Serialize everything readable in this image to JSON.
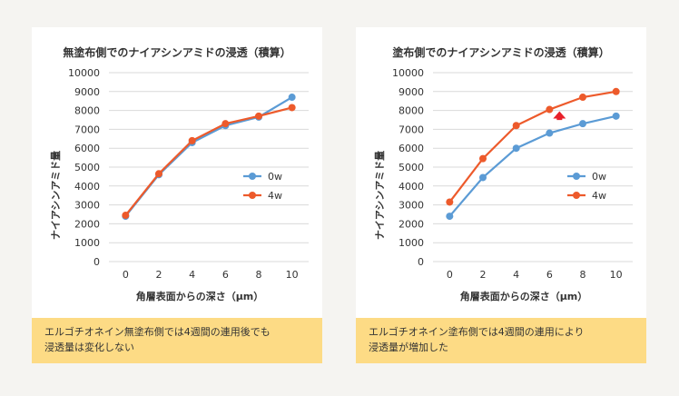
{
  "chart_data": [
    {
      "type": "line",
      "title": "無塗布側でのナイアシンアミドの浸透（積算）",
      "xlabel": "角層表面からの深さ（μm）",
      "ylabel": "ナイアシンアミド量",
      "x": [
        0,
        2,
        4,
        6,
        8,
        10
      ],
      "x_ticks": [
        "0",
        "2",
        "4",
        "6",
        "8",
        "10"
      ],
      "y_ticks": [
        "0",
        "1000",
        "2000",
        "3000",
        "4000",
        "5000",
        "6000",
        "7000",
        "8000",
        "9000",
        "10000"
      ],
      "ylim": [
        0,
        10000
      ],
      "grid": "horizontal",
      "legend_position": "right",
      "series": [
        {
          "name": "0w",
          "color": "#5b9bd5",
          "values": [
            2400,
            4600,
            6300,
            7200,
            7650,
            8700
          ]
        },
        {
          "name": "4w",
          "color": "#ed5a2b",
          "values": [
            2450,
            4650,
            6400,
            7300,
            7700,
            8150
          ]
        }
      ],
      "caption": "エルゴチオネイン無塗布側では4週間の連用後でも\n浸透量は変化しない"
    },
    {
      "type": "line",
      "title": "塗布側でのナイアシンアミドの浸透（積算）",
      "xlabel": "角層表面からの深さ（μm）",
      "ylabel": "ナイアシンアミド量",
      "x": [
        0,
        2,
        4,
        6,
        8,
        10
      ],
      "x_ticks": [
        "0",
        "2",
        "4",
        "6",
        "8",
        "10"
      ],
      "y_ticks": [
        "0",
        "1000",
        "2000",
        "3000",
        "4000",
        "5000",
        "6000",
        "7000",
        "8000",
        "9000",
        "10000"
      ],
      "ylim": [
        0,
        10000
      ],
      "grid": "horizontal",
      "legend_position": "right",
      "series": [
        {
          "name": "0w",
          "color": "#5b9bd5",
          "values": [
            2400,
            4450,
            6000,
            6800,
            7300,
            7700
          ]
        },
        {
          "name": "4w",
          "color": "#ed5a2b",
          "values": [
            3150,
            5450,
            7200,
            8050,
            8700,
            9000
          ]
        }
      ],
      "annotation": {
        "type": "up-arrow",
        "color": "#e8202a",
        "x": 6.6,
        "y_from": 7300,
        "y_to": 8050
      },
      "caption": "エルゴチオネイン塗布側では4週間の連用により\n浸透量が増加した"
    }
  ]
}
